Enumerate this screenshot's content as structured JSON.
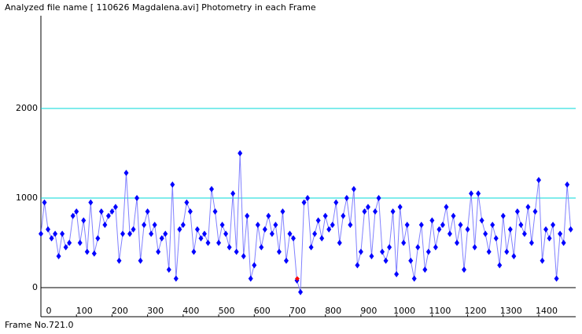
{
  "chart_data": {
    "type": "scatter",
    "title": "Analyzed file name [ 110626 Magdalena.avi]   Photometry in each Frame",
    "footer": "Frame No.721.0",
    "x": [
      0,
      10,
      20,
      30,
      40,
      50,
      60,
      70,
      80,
      90,
      100,
      110,
      120,
      130,
      140,
      150,
      160,
      170,
      180,
      190,
      200,
      210,
      220,
      230,
      240,
      250,
      260,
      270,
      280,
      290,
      300,
      310,
      320,
      330,
      340,
      350,
      360,
      370,
      380,
      390,
      400,
      410,
      420,
      430,
      440,
      450,
      460,
      470,
      480,
      490,
      500,
      510,
      520,
      530,
      540,
      550,
      560,
      570,
      580,
      590,
      600,
      610,
      620,
      630,
      640,
      650,
      660,
      670,
      680,
      690,
      700,
      710,
      720,
      730,
      740,
      750,
      760,
      770,
      780,
      790,
      800,
      810,
      820,
      830,
      840,
      850,
      860,
      870,
      880,
      890,
      900,
      910,
      920,
      930,
      940,
      950,
      960,
      970,
      980,
      990,
      1000,
      1010,
      1020,
      1030,
      1040,
      1050,
      1060,
      1070,
      1080,
      1090,
      1100,
      1110,
      1120,
      1130,
      1140,
      1150,
      1160,
      1170,
      1180,
      1190,
      1200,
      1210,
      1220,
      1230,
      1240,
      1250,
      1260,
      1270,
      1280,
      1290,
      1300,
      1310,
      1320,
      1330,
      1340,
      1350,
      1360,
      1370,
      1380,
      1390,
      1400,
      1410,
      1420,
      1430,
      1440,
      1450,
      1460,
      1470,
      1480,
      1490
    ],
    "series": [
      {
        "color": "#0000ff",
        "line_color": "#8080ff",
        "values": [
          600,
          950,
          650,
          550,
          600,
          350,
          600,
          450,
          500,
          800,
          850,
          500,
          750,
          400,
          950,
          380,
          550,
          850,
          700,
          800,
          850,
          900,
          300,
          600,
          1280,
          600,
          650,
          1000,
          300,
          700,
          850,
          600,
          700,
          400,
          550,
          600,
          200,
          1150,
          100,
          650,
          700,
          950,
          850,
          400,
          650,
          550,
          600,
          500,
          1100,
          850,
          500,
          700,
          600,
          450,
          1050,
          400,
          1500,
          350,
          800,
          100,
          250,
          700,
          450,
          650,
          800,
          600,
          700,
          400,
          850,
          300,
          600,
          550,
          80,
          -50,
          950,
          1000,
          450,
          600,
          750,
          550,
          800,
          650,
          700,
          950,
          500,
          800,
          1000,
          700,
          1100,
          250,
          400,
          850,
          900,
          350,
          850,
          1000,
          400,
          300,
          450,
          850,
          150,
          900,
          500,
          700,
          300,
          100,
          450,
          700,
          200,
          400,
          750,
          450,
          650,
          700,
          900,
          600,
          800,
          500,
          700,
          200,
          650,
          1050,
          450,
          1050,
          750,
          600,
          400,
          700,
          550,
          250,
          800,
          400,
          650,
          350,
          850,
          700,
          600,
          900,
          500,
          850,
          1200,
          300,
          650,
          550,
          700,
          100,
          600,
          500,
          1150,
          650
        ]
      }
    ],
    "highlight": {
      "x": 721,
      "value": 100,
      "color": "#ff0000"
    },
    "xlim": [
      0,
      1504
    ],
    "ylim": [
      -325,
      3035
    ],
    "xticks": [
      0,
      100,
      200,
      300,
      400,
      500,
      600,
      700,
      800,
      900,
      1000,
      1100,
      1200,
      1300,
      1400
    ],
    "yticks": [
      0,
      1000,
      2000
    ],
    "grid_color": "#00d8d8",
    "zero_line_color": "#000000"
  }
}
